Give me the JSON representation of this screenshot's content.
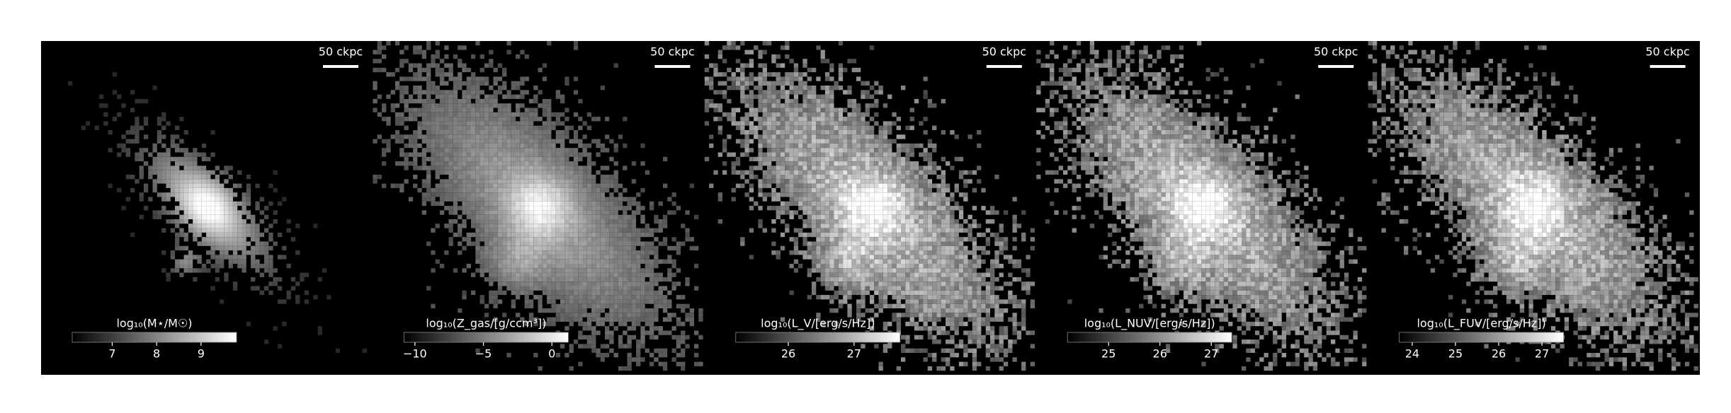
{
  "panels": [
    {
      "scale_label": "50 ckpc",
      "colorbar_label": "log₁₀(M⋆/M☉)",
      "clim": [
        6.1,
        9.8
      ],
      "ticks": [
        7,
        8,
        9
      ]
    },
    {
      "scale_label": "50 ckpc",
      "colorbar_label": "log₁₀(Z_gas/[g/ccm³])",
      "clim": [
        -10.8,
        1.2
      ],
      "ticks": [
        {
          "value": -10,
          "label": "−10"
        },
        {
          "value": -5,
          "label": "−5"
        },
        0
      ]
    },
    {
      "scale_label": "50 ckpc",
      "colorbar_label": "log₁₀(L_V/[erg/s/Hz])",
      "clim": [
        25.2,
        27.7
      ],
      "ticks": [
        26,
        27
      ]
    },
    {
      "scale_label": "50 ckpc",
      "colorbar_label": "log₁₀(L_NUV/[erg/s/Hz])",
      "clim": [
        24.2,
        27.4
      ],
      "ticks": [
        25,
        26,
        27
      ]
    },
    {
      "scale_label": "50 ckpc",
      "colorbar_label": "log₁₀(L_FUV/[erg/s/Hz])",
      "clim": [
        23.7,
        27.5
      ],
      "ticks": [
        24,
        25,
        26,
        27
      ]
    }
  ]
}
